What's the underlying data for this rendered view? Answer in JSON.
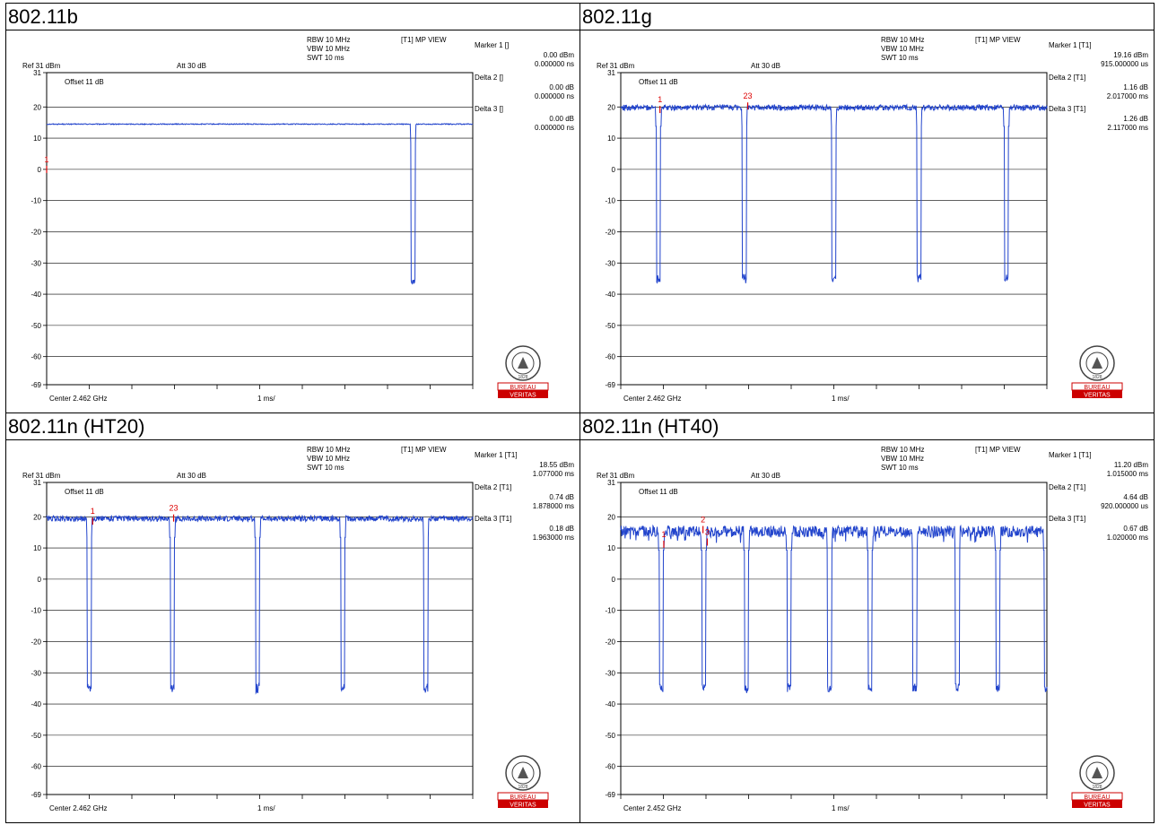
{
  "chart_data": [
    {
      "type": "line",
      "title": "802.11b",
      "ref": "Ref 31 dBm",
      "att": "Att  30 dB",
      "offset": "Offset 11 dB",
      "rbw": "RBW 10 MHz",
      "vbw": "VBW 10 MHz",
      "swt": "SWT 10 ms",
      "view": "[T1] MP VIEW",
      "center": "Center 2.462 GHz",
      "span": "1 ms/",
      "ylim": [
        -69,
        31
      ],
      "xlim": [
        0,
        10
      ],
      "yticks": [
        "31",
        "20",
        "10",
        "0",
        "-10",
        "-20",
        "-30",
        "-40",
        "-50",
        "-60",
        "-69"
      ],
      "ytick_values": [
        31,
        20,
        10,
        0,
        -10,
        -20,
        -30,
        -40,
        -50,
        -60,
        -69
      ],
      "markers_text": [
        {
          "label": "Marker 1 []",
          "val1": "0.00 dBm",
          "val2": "0.000000 ns"
        },
        {
          "label": "Delta 2 []",
          "val1": "0.00 dB",
          "val2": "0.000000 ns"
        },
        {
          "label": "Delta 3 []",
          "val1": "0.00 dB",
          "val2": "0.000000 ns"
        }
      ],
      "plot_markers": [
        {
          "label": "1",
          "x": 0.0,
          "y": 0
        }
      ],
      "series": [
        {
          "level": 14.5,
          "noise": 0.15,
          "dips": [
            8.6
          ],
          "dip_level": -36,
          "start_x": 0
        }
      ],
      "trace_color": "#2244cc"
    },
    {
      "type": "line",
      "title": "802.11g",
      "ref": "Ref 31 dBm",
      "att": "Att  30 dB",
      "offset": "Offset 11 dB",
      "rbw": "RBW 10 MHz",
      "vbw": "VBW 10 MHz",
      "swt": "SWT 10 ms",
      "view": "[T1] MP VIEW",
      "center": "Center 2.462 GHz",
      "span": "1 ms/",
      "ylim": [
        -69,
        31
      ],
      "xlim": [
        0,
        10
      ],
      "yticks": [
        "31",
        "20",
        "10",
        "0",
        "-10",
        "-20",
        "-30",
        "-40",
        "-50",
        "-60",
        "-69"
      ],
      "ytick_values": [
        31,
        20,
        10,
        0,
        -10,
        -20,
        -30,
        -40,
        -50,
        -60,
        -69
      ],
      "markers_text": [
        {
          "label": "Marker 1 [T1]",
          "val1": "19.16 dBm",
          "val2": "915.000000 us"
        },
        {
          "label": "Delta 2 [T1]",
          "val1": "1.16 dB",
          "val2": "2.017000 ms"
        },
        {
          "label": "Delta 3 [T1]",
          "val1": "1.26 dB",
          "val2": "2.117000 ms"
        }
      ],
      "plot_markers": [
        {
          "label": "1",
          "x": 0.92,
          "y": 19.2
        },
        {
          "label": "23",
          "x": 2.98,
          "y": 20.3
        }
      ],
      "series": [
        {
          "level": 19.8,
          "noise": 0.9,
          "dips": [
            0.88,
            2.9,
            5.0,
            7.0,
            9.05
          ],
          "dip_level": -35,
          "start_x": 0
        }
      ],
      "trace_color": "#2244cc"
    },
    {
      "type": "line",
      "title": "802.11n (HT20)",
      "ref": "Ref 31 dBm",
      "att": "Att  30 dB",
      "offset": "Offset 11 dB",
      "rbw": "RBW 10 MHz",
      "vbw": "VBW 10 MHz",
      "swt": "SWT 10 ms",
      "view": "[T1] MP VIEW",
      "center": "Center 2.462 GHz",
      "span": "1 ms/",
      "ylim": [
        -69,
        31
      ],
      "xlim": [
        0,
        10
      ],
      "yticks": [
        "31",
        "20",
        "10",
        "0",
        "-10",
        "-20",
        "-30",
        "-40",
        "-50",
        "-60",
        "-69"
      ],
      "ytick_values": [
        31,
        20,
        10,
        0,
        -10,
        -20,
        -30,
        -40,
        -50,
        -60,
        -69
      ],
      "markers_text": [
        {
          "label": "Marker 1 [T1]",
          "val1": "18.55 dBm",
          "val2": "1.077000 ms"
        },
        {
          "label": "Delta 2 [T1]",
          "val1": "0.74 dB",
          "val2": "1.878000 ms"
        },
        {
          "label": "Delta 3 [T1]",
          "val1": "0.18 dB",
          "val2": "1.963000 ms"
        }
      ],
      "plot_markers": [
        {
          "label": "1",
          "x": 1.08,
          "y": 18.6
        },
        {
          "label": "23",
          "x": 2.98,
          "y": 19.6
        }
      ],
      "series": [
        {
          "level": 19.4,
          "noise": 0.9,
          "dips": [
            1.0,
            2.95,
            4.95,
            6.95,
            8.9
          ],
          "dip_level": -35,
          "start_x": 0
        }
      ],
      "trace_color": "#2244cc"
    },
    {
      "type": "line",
      "title": "802.11n (HT40)",
      "ref": "Ref 31 dBm",
      "att": "Att  30 dB",
      "offset": "Offset 11 dB",
      "rbw": "RBW 10 MHz",
      "vbw": "VBW 10 MHz",
      "swt": "SWT 10 ms",
      "view": "[T1] MP VIEW",
      "center": "Center 2.452 GHz",
      "span": "1 ms/",
      "ylim": [
        -69,
        31
      ],
      "xlim": [
        0,
        10
      ],
      "yticks": [
        "31",
        "20",
        "10",
        "0",
        "-10",
        "-20",
        "-30",
        "-40",
        "-50",
        "-60",
        "-69"
      ],
      "ytick_values": [
        31,
        20,
        10,
        0,
        -10,
        -20,
        -30,
        -40,
        -50,
        -60,
        -69
      ],
      "markers_text": [
        {
          "label": "Marker 1 [T1]",
          "val1": "11.20 dBm",
          "val2": "1.015000 ms"
        },
        {
          "label": "Delta 2 [T1]",
          "val1": "4.64 dB",
          "val2": "920.000000 us"
        },
        {
          "label": "Delta 3 [T1]",
          "val1": "0.67 dB",
          "val2": "1.020000 ms"
        }
      ],
      "plot_markers": [
        {
          "label": "1",
          "x": 1.01,
          "y": 11.2
        },
        {
          "label": "2",
          "x": 1.93,
          "y": 15.9
        },
        {
          "label": "3",
          "x": 2.03,
          "y": 11.9
        }
      ],
      "series": [
        {
          "level": 15.3,
          "noise": 1.8,
          "dips": [
            0.95,
            1.95,
            2.95,
            3.95,
            4.9,
            5.85,
            6.9,
            7.9,
            8.85,
            9.98
          ],
          "dip_level": -35,
          "start_x": 0
        }
      ],
      "trace_color": "#2244cc"
    }
  ],
  "logo": {
    "top": "BUREAU VERITAS",
    "year": "1828",
    "band1": "BUREAU",
    "band2": "VERITAS",
    "color": "#cc0000"
  }
}
